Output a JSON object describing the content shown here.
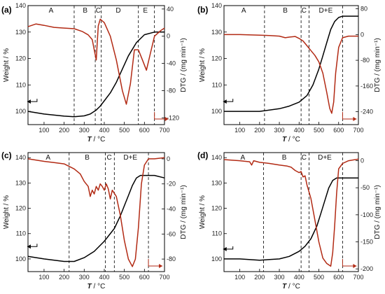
{
  "colors": {
    "weight": "#000000",
    "dtg": "#b22a14",
    "frame": "#000000",
    "divider": "#000000"
  },
  "chart_data": [
    {
      "type": "line",
      "panel_label": "(a)",
      "xlabel_main": "T",
      "xlabel_unit": " / °C",
      "ylabel_left": "Weight / %",
      "ylabel_right": "DTG / (mg min⁻¹)",
      "xlim": [
        20,
        700
      ],
      "xticks": [
        100,
        200,
        300,
        400,
        500,
        600,
        700
      ],
      "ylim_left": [
        95,
        140
      ],
      "yticks_left": [
        100,
        110,
        120,
        130,
        140
      ],
      "ylim_right": [
        -130,
        45
      ],
      "yticks_right": [
        -120,
        -80,
        -40,
        0,
        40
      ],
      "regions": [
        {
          "label": "A",
          "x": 135
        },
        {
          "label": "B",
          "x": 305
        },
        {
          "label": "C",
          "x": 370
        },
        {
          "label": "D",
          "x": 470
        },
        {
          "label": "E",
          "x": 605
        }
      ],
      "dividers": [
        250,
        355,
        385,
        570,
        650
      ],
      "series": [
        {
          "axis": "left",
          "color_key": "weight",
          "x": [
            20,
            100,
            200,
            250,
            300,
            330,
            360,
            380,
            400,
            430,
            460,
            490,
            520,
            560,
            600,
            650,
            700
          ],
          "y": [
            100,
            99,
            98.2,
            98,
            98.3,
            99,
            100.5,
            102,
            104,
            107,
            111,
            116,
            121,
            126,
            129,
            130,
            130
          ]
        },
        {
          "axis": "right",
          "color_key": "dtg",
          "x": [
            20,
            60,
            100,
            150,
            200,
            250,
            290,
            320,
            340,
            350,
            360,
            365,
            370,
            380,
            400,
            430,
            460,
            490,
            510,
            530,
            550,
            570,
            590,
            610,
            630,
            650,
            680,
            700
          ],
          "y": [
            14,
            18,
            16,
            13,
            12,
            11,
            7,
            2,
            -5,
            -20,
            -35,
            -10,
            15,
            25,
            20,
            0,
            -35,
            -80,
            -100,
            -70,
            -20,
            -20,
            -35,
            -50,
            -25,
            0,
            8,
            12
          ]
        }
      ],
      "annotations": [
        {
          "text": "weight arrow",
          "axis": "left"
        },
        {
          "text": "DTG arrow",
          "axis": "right"
        }
      ]
    },
    {
      "type": "line",
      "panel_label": "(b)",
      "xlabel_main": "T",
      "xlabel_unit": " / °C",
      "ylabel_left": "Weight / %",
      "ylabel_right": "DTG / (mg min⁻¹)",
      "xlim": [
        20,
        700
      ],
      "xticks": [
        100,
        200,
        300,
        400,
        500,
        600,
        700
      ],
      "ylim_left": [
        95,
        140
      ],
      "yticks_left": [
        100,
        110,
        120,
        130,
        140
      ],
      "ylim_right": [
        -280,
        90
      ],
      "yticks_right": [
        -240,
        -160,
        -80,
        0,
        80
      ],
      "regions": [
        {
          "label": "A",
          "x": 120
        },
        {
          "label": "B",
          "x": 330
        },
        {
          "label": "C",
          "x": 425
        },
        {
          "label": "D+E",
          "x": 535
        }
      ],
      "dividers": [
        225,
        410,
        450,
        620
      ],
      "series": [
        {
          "axis": "left",
          "color_key": "weight",
          "x": [
            20,
            100,
            200,
            300,
            350,
            400,
            440,
            470,
            500,
            520,
            540,
            560,
            580,
            600,
            620,
            650,
            700
          ],
          "y": [
            100,
            100,
            100,
            101,
            102,
            103.5,
            106,
            110,
            116,
            121,
            126,
            131,
            134,
            135.5,
            136,
            136,
            136
          ]
        },
        {
          "axis": "right",
          "color_key": "dtg",
          "x": [
            20,
            100,
            200,
            250,
            300,
            330,
            350,
            380,
            400,
            420,
            440,
            460,
            480,
            500,
            520,
            540,
            555,
            565,
            575,
            585,
            600,
            620,
            650,
            700
          ],
          "y": [
            0,
            0,
            -2,
            -3,
            -5,
            -10,
            -8,
            -6,
            -12,
            -20,
            -35,
            -50,
            -65,
            -85,
            -120,
            -180,
            -230,
            -245,
            -210,
            -120,
            -40,
            -10,
            -5,
            -5
          ]
        }
      ],
      "annotations": [
        {
          "text": "weight arrow",
          "axis": "left"
        },
        {
          "text": "DTG arrow",
          "axis": "right"
        }
      ]
    },
    {
      "type": "line",
      "panel_label": "(c)",
      "xlabel_main": "T",
      "xlabel_unit": " / °C",
      "ylabel_left": "Weight / %",
      "ylabel_right": "DTG / (mg min⁻¹)",
      "xlim": [
        20,
        700
      ],
      "xticks": [
        100,
        200,
        300,
        400,
        500,
        600,
        700
      ],
      "ylim_left": [
        95,
        142
      ],
      "yticks_left": [
        100,
        110,
        120,
        130,
        140
      ],
      "ylim_right": [
        -90,
        5
      ],
      "yticks_right": [
        -80,
        -60,
        -40,
        -20,
        0
      ],
      "regions": [
        {
          "label": "A",
          "x": 120
        },
        {
          "label": "B",
          "x": 315
        },
        {
          "label": "C",
          "x": 425
        },
        {
          "label": "D+E",
          "x": 530
        }
      ],
      "dividers": [
        225,
        405,
        450,
        620
      ],
      "series": [
        {
          "axis": "left",
          "color_key": "weight",
          "x": [
            20,
            100,
            200,
            250,
            300,
            350,
            400,
            450,
            480,
            500,
            520,
            540,
            560,
            580,
            600,
            650,
            700
          ],
          "y": [
            101,
            100,
            99,
            99,
            100.5,
            103,
            107,
            112,
            117,
            121,
            125,
            129,
            132,
            133,
            133,
            133,
            132
          ]
        },
        {
          "axis": "right",
          "color_key": "dtg",
          "x": [
            20,
            100,
            150,
            200,
            250,
            280,
            300,
            320,
            330,
            340,
            350,
            360,
            370,
            380,
            390,
            400,
            410,
            420,
            430,
            440,
            460,
            480,
            500,
            520,
            540,
            555,
            570,
            585,
            600,
            620,
            650,
            700
          ],
          "y": [
            0,
            -2,
            -3,
            -4,
            -8,
            -12,
            -18,
            -22,
            -30,
            -25,
            -28,
            -22,
            -25,
            -20,
            -22,
            -25,
            -20,
            -24,
            -32,
            -25,
            -30,
            -45,
            -65,
            -80,
            -86,
            -80,
            -55,
            -20,
            -5,
            0,
            0,
            1
          ]
        }
      ],
      "annotations": [
        {
          "text": "weight arrow",
          "axis": "left"
        },
        {
          "text": "DTG arrow",
          "axis": "right"
        }
      ]
    },
    {
      "type": "line",
      "panel_label": "(d)",
      "xlabel_main": "T",
      "xlabel_unit": " / °C",
      "ylabel_left": "Weight / %",
      "ylabel_right": "DTG / (mg min⁻¹)",
      "xlim": [
        20,
        700
      ],
      "xticks": [
        100,
        200,
        300,
        400,
        500,
        600,
        700
      ],
      "ylim_left": [
        95,
        142
      ],
      "yticks_left": [
        100,
        110,
        120,
        130,
        140
      ],
      "ylim_right": [
        -205,
        15
      ],
      "yticks_right": [
        -200,
        -150,
        -100,
        -50,
        0
      ],
      "regions": [
        {
          "label": "A",
          "x": 115
        },
        {
          "label": "B",
          "x": 325
        },
        {
          "label": "C",
          "x": 425
        },
        {
          "label": "D+E",
          "x": 530
        }
      ],
      "dividers": [
        220,
        410,
        450,
        620
      ],
      "series": [
        {
          "axis": "left",
          "color_key": "weight",
          "x": [
            20,
            100,
            200,
            300,
            350,
            400,
            430,
            460,
            490,
            510,
            530,
            550,
            570,
            590,
            610,
            650,
            700
          ],
          "y": [
            100,
            100,
            99.5,
            100,
            101,
            103,
            105,
            108,
            113,
            118,
            123,
            128,
            131,
            132,
            132,
            132,
            132
          ]
        },
        {
          "axis": "right",
          "color_key": "dtg",
          "x": [
            20,
            100,
            150,
            160,
            170,
            200,
            250,
            300,
            340,
            360,
            380,
            400,
            410,
            420,
            430,
            440,
            460,
            480,
            500,
            520,
            540,
            560,
            570,
            580,
            590,
            600,
            620,
            650,
            700
          ],
          "y": [
            2,
            0,
            -2,
            -8,
            0,
            -3,
            -5,
            -8,
            -10,
            -12,
            -18,
            -22,
            -20,
            -30,
            -28,
            -45,
            -70,
            -110,
            -150,
            -180,
            -190,
            -195,
            -170,
            -120,
            -60,
            -15,
            -5,
            0,
            3
          ]
        }
      ],
      "annotations": [
        {
          "text": "weight arrow",
          "axis": "left"
        },
        {
          "text": "DTG arrow",
          "axis": "right"
        }
      ]
    }
  ]
}
